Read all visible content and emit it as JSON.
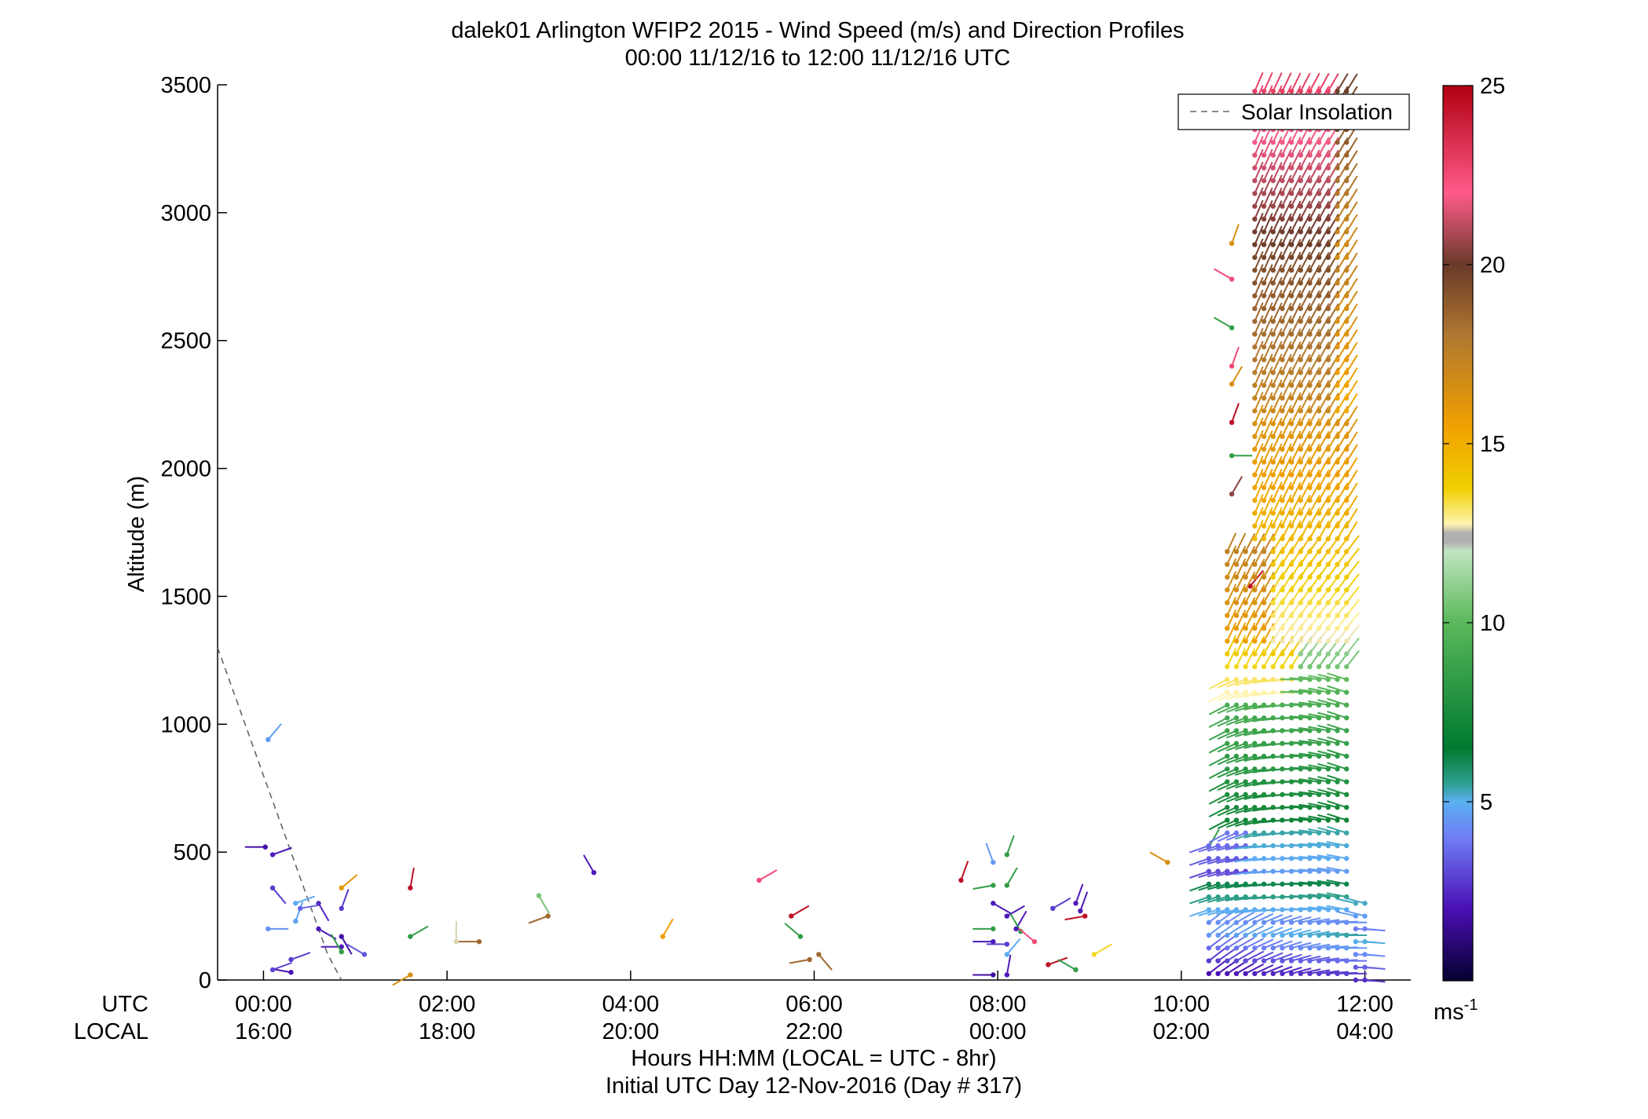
{
  "chart_data": {
    "type": "scatter",
    "subtype": "wind-barb-profile",
    "title": "dalek01 Arlington WFIP2 2015 - Wind Speed (m/s) and Direction Profiles",
    "subtitle": "00:00 11/12/16 to 12:00 11/12/16  UTC",
    "ylabel": "Altitude (m)",
    "xlabel": "Hours HH:MM  (LOCAL = UTC - 8hr)",
    "xlabel2": "Initial UTC Day 12-Nov-2016 (Day # 317)",
    "row_label_utc": "UTC",
    "row_label_local": "LOCAL",
    "xlim": [
      -0.5,
      12.5
    ],
    "ylim": [
      0,
      3500
    ],
    "x_ticks": [
      {
        "x": 0,
        "utc": "00:00",
        "local": "16:00"
      },
      {
        "x": 2,
        "utc": "02:00",
        "local": "18:00"
      },
      {
        "x": 4,
        "utc": "04:00",
        "local": "20:00"
      },
      {
        "x": 6,
        "utc": "06:00",
        "local": "22:00"
      },
      {
        "x": 8,
        "utc": "08:00",
        "local": "00:00"
      },
      {
        "x": 10,
        "utc": "10:00",
        "local": "02:00"
      },
      {
        "x": 12,
        "utc": "12:00",
        "local": "04:00"
      }
    ],
    "y_ticks": [
      0,
      500,
      1000,
      1500,
      2000,
      2500,
      3000,
      3500
    ],
    "legend": {
      "label": "Solar Insolation",
      "position": "top-right",
      "style": "dashed",
      "color": "#666666"
    },
    "colorbar": {
      "min": 0,
      "max": 25,
      "ticks": [
        5,
        10,
        15,
        20,
        25
      ],
      "unit_text": "ms",
      "unit_sup": "-1"
    },
    "solar_insolation": {
      "x": [
        -0.5,
        -0.3,
        -0.1,
        0.1,
        0.3,
        0.5,
        0.7,
        0.85
      ],
      "y": [
        1300,
        1100,
        900,
        700,
        500,
        300,
        100,
        0
      ]
    },
    "dense_profiles": {
      "description": "hours 10.3-12.0 plotted every 0.1 hr at 50 m spacing",
      "t_start": 10.3,
      "t_end": 12.0,
      "t_step": 0.1,
      "z_step": 50
    },
    "barbs": [
      {
        "t": 0.05,
        "z": 940,
        "speed": 4.6,
        "dir": 220
      },
      {
        "t": 0.02,
        "z": 520,
        "speed": 1.8,
        "dir": 90
      },
      {
        "t": 0.1,
        "z": 490,
        "speed": 2.2,
        "dir": 250
      },
      {
        "t": 0.1,
        "z": 360,
        "speed": 2.8,
        "dir": 320
      },
      {
        "t": 0.05,
        "z": 200,
        "speed": 4.4,
        "dir": 270
      },
      {
        "t": 0.35,
        "z": 300,
        "speed": 4.9,
        "dir": 250
      },
      {
        "t": 0.35,
        "z": 230,
        "speed": 4.7,
        "dir": 200
      },
      {
        "t": 0.4,
        "z": 280,
        "speed": 3.5,
        "dir": 260
      },
      {
        "t": 0.6,
        "z": 300,
        "speed": 2.5,
        "dir": 330
      },
      {
        "t": 0.6,
        "z": 200,
        "speed": 2.2,
        "dir": 300
      },
      {
        "t": 0.3,
        "z": 80,
        "speed": 2.8,
        "dir": 250
      },
      {
        "t": 0.3,
        "z": 30,
        "speed": 2.0,
        "dir": 100
      },
      {
        "t": 0.1,
        "z": 40,
        "speed": 3.0,
        "dir": 250
      },
      {
        "t": 0.85,
        "z": 280,
        "speed": 2.8,
        "dir": 200
      },
      {
        "t": 0.85,
        "z": 170,
        "speed": 1.8,
        "dir": 330
      },
      {
        "t": 0.85,
        "z": 130,
        "speed": 2.2,
        "dir": 90
      },
      {
        "t": 1.1,
        "z": 100,
        "speed": 3.3,
        "dir": 120
      },
      {
        "t": 0.85,
        "z": 110,
        "speed": 8.5,
        "dir": 150
      },
      {
        "t": 0.85,
        "z": 360,
        "speed": 16.0,
        "dir": 230
      },
      {
        "t": 1.6,
        "z": 170,
        "speed": 8.5,
        "dir": 240
      },
      {
        "t": 1.6,
        "z": 20,
        "speed": 16.5,
        "dir": 60
      },
      {
        "t": 1.6,
        "z": 360,
        "speed": 24.5,
        "dir": 190
      },
      {
        "t": 2.1,
        "z": 150,
        "speed": 12.5,
        "dir": 180
      },
      {
        "t": 2.35,
        "z": 150,
        "speed": 18.5,
        "dir": 90
      },
      {
        "t": 3.1,
        "z": 250,
        "speed": 18.5,
        "dir": 70
      },
      {
        "t": 3.0,
        "z": 330,
        "speed": 10.5,
        "dir": 330
      },
      {
        "t": 3.6,
        "z": 420,
        "speed": 2.2,
        "dir": 150
      },
      {
        "t": 4.35,
        "z": 170,
        "speed": 15.5,
        "dir": 210
      },
      {
        "t": 5.4,
        "z": 390,
        "speed": 22.5,
        "dir": 240
      },
      {
        "t": 5.75,
        "z": 250,
        "speed": 24.5,
        "dir": 240
      },
      {
        "t": 5.95,
        "z": 80,
        "speed": 18.5,
        "dir": 80
      },
      {
        "t": 5.85,
        "z": 170,
        "speed": 8.5,
        "dir": 130
      },
      {
        "t": 6.05,
        "z": 100,
        "speed": 18.5,
        "dir": 320
      },
      {
        "t": 7.6,
        "z": 390,
        "speed": 24.5,
        "dir": 200
      },
      {
        "t": 7.95,
        "z": 460,
        "speed": 4.5,
        "dir": 160
      },
      {
        "t": 7.95,
        "z": 370,
        "speed": 8.5,
        "dir": 80
      },
      {
        "t": 8.1,
        "z": 490,
        "speed": 8.5,
        "dir": 200
      },
      {
        "t": 8.1,
        "z": 370,
        "speed": 8.5,
        "dir": 210
      },
      {
        "t": 7.95,
        "z": 300,
        "speed": 2.2,
        "dir": 300
      },
      {
        "t": 7.95,
        "z": 200,
        "speed": 8.5,
        "dir": 90
      },
      {
        "t": 7.95,
        "z": 150,
        "speed": 2.2,
        "dir": 90
      },
      {
        "t": 8.1,
        "z": 250,
        "speed": 2.2,
        "dir": 240
      },
      {
        "t": 8.2,
        "z": 200,
        "speed": 2.2,
        "dir": 210
      },
      {
        "t": 8.1,
        "z": 140,
        "speed": 2.8,
        "dir": 90
      },
      {
        "t": 8.1,
        "z": 100,
        "speed": 4.9,
        "dir": 220
      },
      {
        "t": 7.95,
        "z": 20,
        "speed": 1.8,
        "dir": 90
      },
      {
        "t": 8.1,
        "z": 20,
        "speed": 2.2,
        "dir": 190
      },
      {
        "t": 8.25,
        "z": 190,
        "speed": 8.5,
        "dir": 150
      },
      {
        "t": 8.4,
        "z": 150,
        "speed": 22.5,
        "dir": 130
      },
      {
        "t": 8.55,
        "z": 60,
        "speed": 24.5,
        "dir": 250
      },
      {
        "t": 8.6,
        "z": 280,
        "speed": 2.8,
        "dir": 240
      },
      {
        "t": 8.85,
        "z": 300,
        "speed": 2.2,
        "dir": 200
      },
      {
        "t": 8.9,
        "z": 270,
        "speed": 2.2,
        "dir": 200
      },
      {
        "t": 8.95,
        "z": 250,
        "speed": 24.5,
        "dir": 80
      },
      {
        "t": 9.05,
        "z": 100,
        "speed": 13.5,
        "dir": 240
      },
      {
        "t": 8.85,
        "z": 40,
        "speed": 8.5,
        "dir": 120
      },
      {
        "t": 9.85,
        "z": 460,
        "speed": 16.5,
        "dir": 120
      },
      {
        "t": 10.3,
        "z": 520,
        "speed": 8.5,
        "dir": 210
      },
      {
        "t": 10.55,
        "z": 2880,
        "speed": 16.5,
        "dir": 200
      },
      {
        "t": 10.55,
        "z": 2740,
        "speed": 22.5,
        "dir": 120
      },
      {
        "t": 10.55,
        "z": 2550,
        "speed": 8.5,
        "dir": 120
      },
      {
        "t": 10.55,
        "z": 2400,
        "speed": 22.5,
        "dir": 200
      },
      {
        "t": 10.55,
        "z": 2330,
        "speed": 16.5,
        "dir": 210
      },
      {
        "t": 10.55,
        "z": 2180,
        "speed": 24.5,
        "dir": 200
      },
      {
        "t": 10.55,
        "z": 2050,
        "speed": 8.5,
        "dir": 270
      },
      {
        "t": 10.55,
        "z": 1900,
        "speed": 20.5,
        "dir": 210
      },
      {
        "t": 10.75,
        "z": 1540,
        "speed": 24.5,
        "dir": 220
      }
    ]
  }
}
